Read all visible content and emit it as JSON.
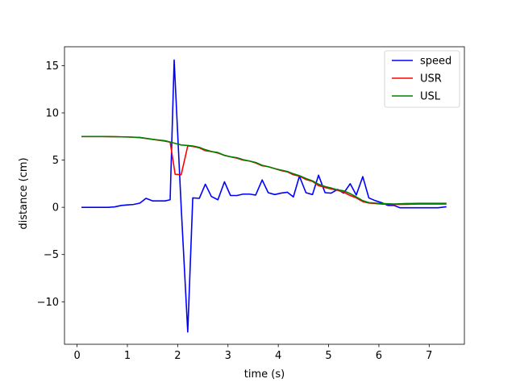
{
  "chart_data": {
    "type": "line",
    "title": "",
    "xlabel": "time (s)",
    "ylabel": "distance (cm)",
    "xlim": [
      -0.25,
      7.7
    ],
    "ylim": [
      -14.5,
      17.0
    ],
    "xticks": [
      0,
      1,
      2,
      3,
      4,
      5,
      6,
      7
    ],
    "yticks": [
      -10,
      -5,
      0,
      5,
      10,
      15
    ],
    "grid": false,
    "legend_position": "upper right",
    "series": [
      {
        "name": "speed",
        "color": "#0000ff",
        "x": [
          0.1,
          0.2,
          0.35,
          0.5,
          0.62,
          0.75,
          0.88,
          1.0,
          1.12,
          1.25,
          1.37,
          1.5,
          1.62,
          1.75,
          1.85,
          1.93,
          2.07,
          2.2,
          2.3,
          2.43,
          2.55,
          2.67,
          2.8,
          2.93,
          3.05,
          3.18,
          3.3,
          3.43,
          3.55,
          3.68,
          3.8,
          3.93,
          4.05,
          4.18,
          4.3,
          4.42,
          4.55,
          4.68,
          4.8,
          4.93,
          5.05,
          5.18,
          5.3,
          5.43,
          5.55,
          5.68,
          5.8,
          5.93,
          6.05,
          6.18,
          6.3,
          6.42,
          6.55,
          6.68,
          6.8,
          6.93,
          7.05,
          7.18,
          7.33
        ],
        "y": [
          0.0,
          0.0,
          0.0,
          0.0,
          0.0,
          0.05,
          0.2,
          0.25,
          0.3,
          0.45,
          0.95,
          0.68,
          0.68,
          0.68,
          0.8,
          15.6,
          0.0,
          -13.2,
          1.0,
          0.95,
          2.45,
          1.15,
          0.8,
          2.7,
          1.25,
          1.25,
          1.4,
          1.4,
          1.3,
          2.9,
          1.55,
          1.35,
          1.5,
          1.6,
          1.1,
          3.3,
          1.55,
          1.35,
          3.4,
          1.55,
          1.5,
          1.9,
          1.5,
          2.5,
          1.3,
          3.25,
          1.0,
          0.7,
          0.5,
          0.2,
          0.2,
          -0.05,
          -0.05,
          -0.05,
          -0.05,
          -0.05,
          -0.05,
          -0.05,
          0.05
        ]
      },
      {
        "name": "USR",
        "color": "#ff0000",
        "x": [
          0.1,
          0.25,
          0.5,
          0.75,
          1.0,
          1.25,
          1.5,
          1.75,
          1.85,
          1.95,
          2.07,
          2.2,
          2.3,
          2.43,
          2.55,
          2.68,
          2.8,
          2.93,
          3.05,
          3.18,
          3.3,
          3.43,
          3.55,
          3.68,
          3.8,
          3.93,
          4.05,
          4.18,
          4.3,
          4.42,
          4.55,
          4.68,
          4.8,
          4.93,
          5.05,
          5.18,
          5.3,
          5.43,
          5.55,
          5.68,
          5.8,
          5.93,
          6.05,
          6.3,
          6.55,
          6.8,
          7.05,
          7.33
        ],
        "y": [
          7.5,
          7.5,
          7.5,
          7.48,
          7.45,
          7.38,
          7.2,
          7.0,
          6.9,
          3.5,
          3.45,
          6.5,
          6.45,
          6.3,
          6.0,
          5.9,
          5.75,
          5.5,
          5.35,
          5.2,
          5.0,
          4.9,
          4.7,
          4.4,
          4.3,
          4.1,
          3.9,
          3.75,
          3.45,
          3.3,
          2.95,
          2.75,
          2.3,
          2.1,
          1.95,
          1.8,
          1.6,
          1.25,
          1.0,
          0.6,
          0.45,
          0.4,
          0.35,
          0.3,
          0.32,
          0.35,
          0.35,
          0.35
        ]
      },
      {
        "name": "USL",
        "color": "#008000",
        "x": [
          0.1,
          0.25,
          0.5,
          0.75,
          1.0,
          1.25,
          1.5,
          1.75,
          1.93,
          2.07,
          2.2,
          2.3,
          2.43,
          2.55,
          2.68,
          2.8,
          2.93,
          3.05,
          3.18,
          3.3,
          3.43,
          3.55,
          3.68,
          3.8,
          3.93,
          4.05,
          4.18,
          4.3,
          4.42,
          4.55,
          4.68,
          4.8,
          4.93,
          5.05,
          5.18,
          5.3,
          5.43,
          5.55,
          5.68,
          5.8,
          5.93,
          6.05,
          6.3,
          6.55,
          6.8,
          7.05,
          7.33
        ],
        "y": [
          7.5,
          7.5,
          7.5,
          7.48,
          7.45,
          7.4,
          7.2,
          7.05,
          6.8,
          6.6,
          6.55,
          6.5,
          6.35,
          6.1,
          5.9,
          5.8,
          5.5,
          5.35,
          5.25,
          5.05,
          4.9,
          4.75,
          4.45,
          4.3,
          4.1,
          3.95,
          3.8,
          3.55,
          3.35,
          3.05,
          2.8,
          2.45,
          2.2,
          2.05,
          1.85,
          1.75,
          1.45,
          1.1,
          0.7,
          0.5,
          0.45,
          0.4,
          0.35,
          0.4,
          0.42,
          0.42,
          0.42
        ]
      }
    ]
  }
}
